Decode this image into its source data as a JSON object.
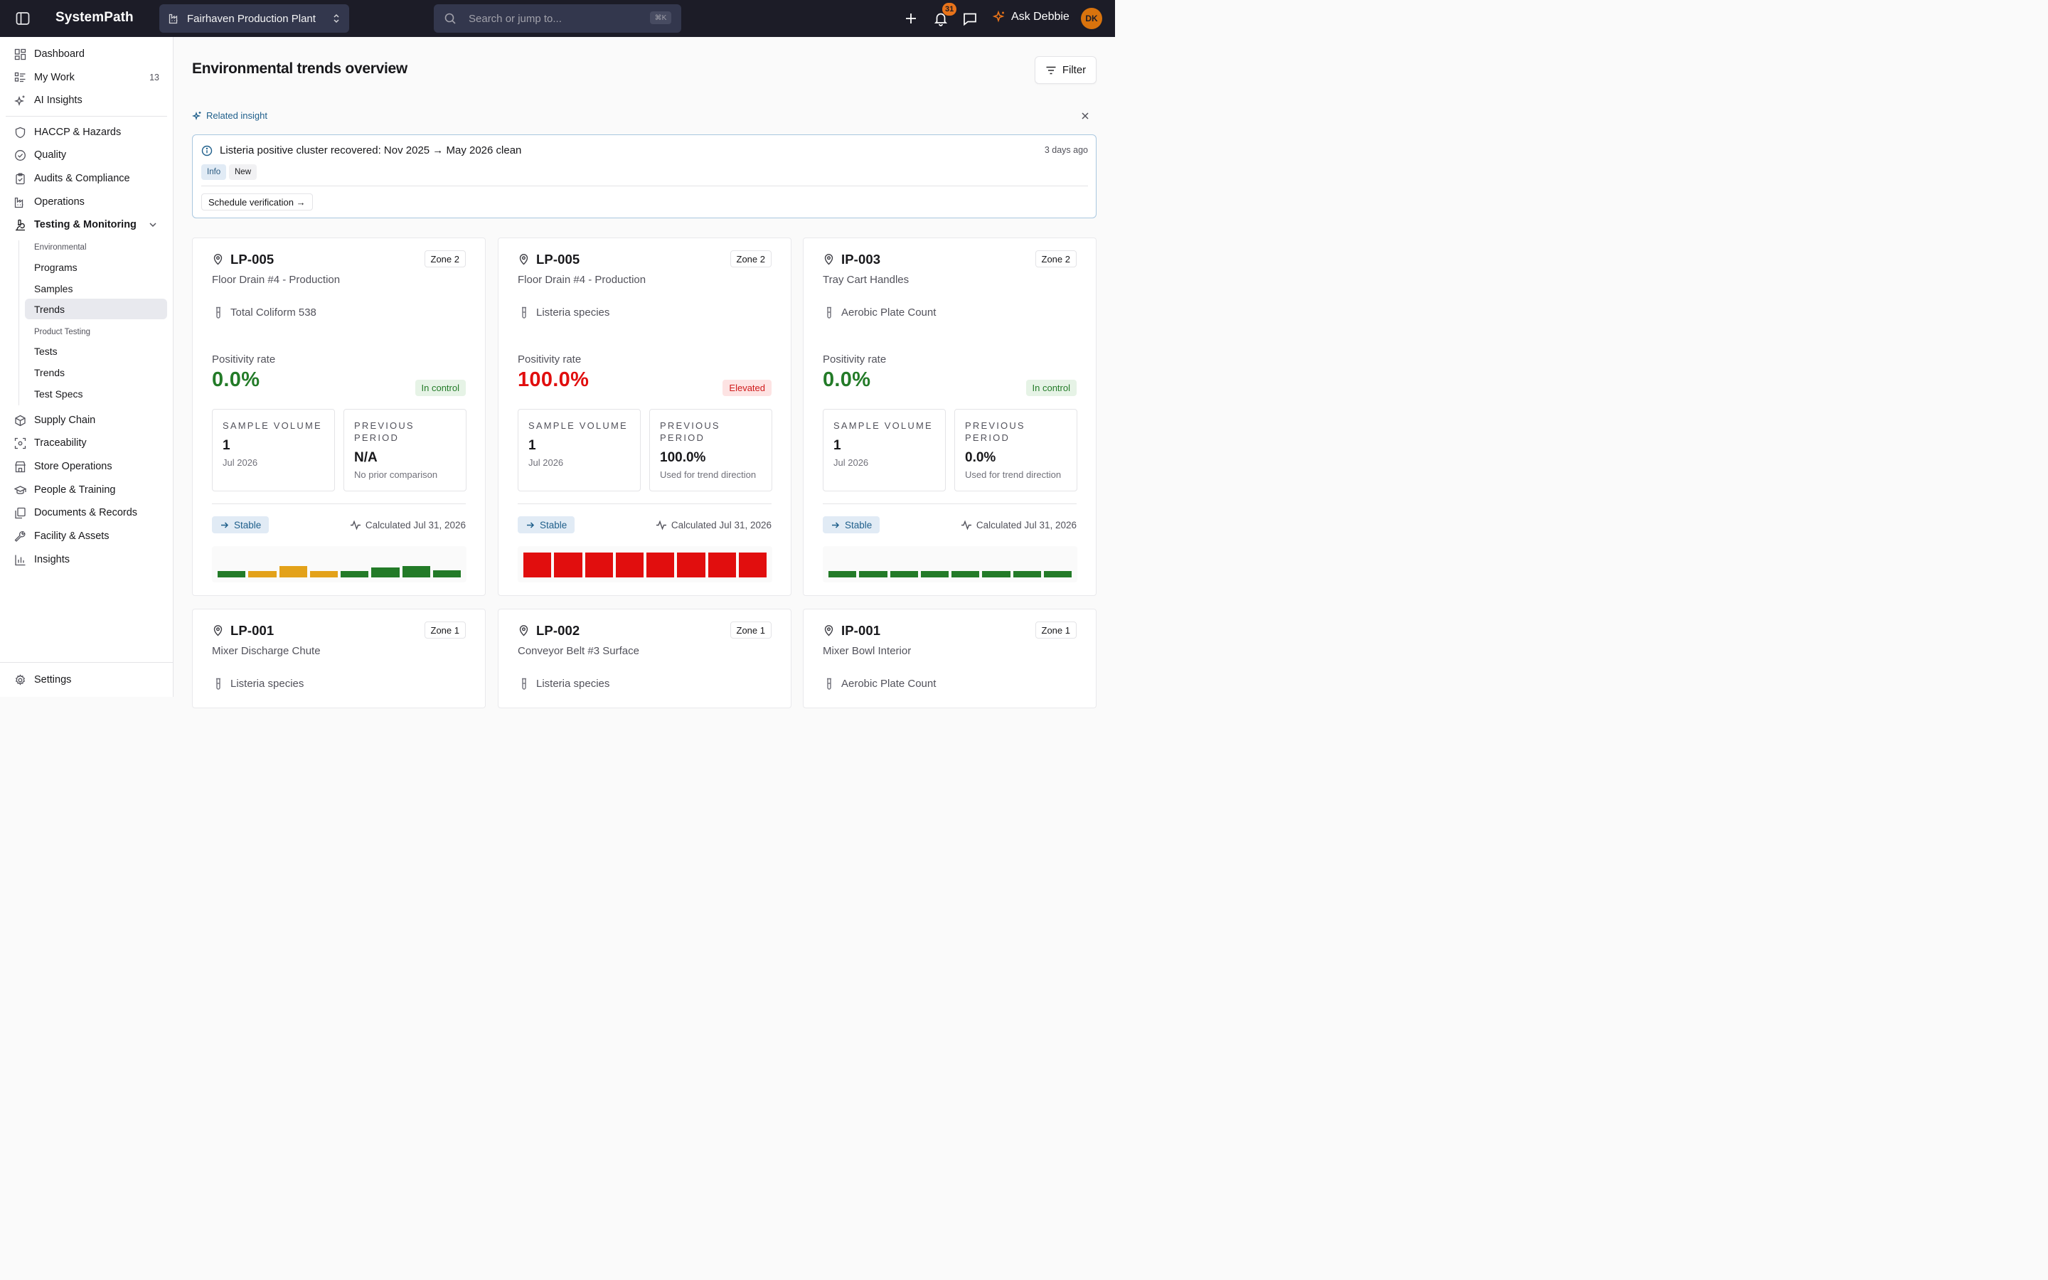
{
  "topbar": {
    "brand": "SystemPath",
    "site": "Fairhaven Production Plant",
    "search_placeholder": "Search or jump to...",
    "search_shortcut": "⌘K",
    "notification_count": "31",
    "ask_label": "Ask Debbie",
    "avatar_initials": "DK",
    "accent": "#e8731a"
  },
  "sidebar": {
    "top_items": [
      {
        "label": "Dashboard",
        "icon": "dashboard-icon"
      },
      {
        "label": "My Work",
        "icon": "list-icon",
        "count": "13"
      },
      {
        "label": "AI Insights",
        "icon": "sparkles-icon"
      }
    ],
    "items": [
      {
        "label": "HACCP & Hazards",
        "icon": "shield-icon"
      },
      {
        "label": "Quality",
        "icon": "check-circle-icon"
      },
      {
        "label": "Audits & Compliance",
        "icon": "clipboard-icon"
      },
      {
        "label": "Operations",
        "icon": "factory-icon"
      },
      {
        "label": "Testing & Monitoring",
        "icon": "microscope-icon"
      }
    ],
    "sub_groups": [
      {
        "heading": "Environmental",
        "items": [
          "Programs",
          "Samples",
          "Trends"
        ]
      },
      {
        "heading": "Product Testing",
        "items": [
          "Tests",
          "Trends",
          "Test Specs"
        ]
      }
    ],
    "active_sub_item": "Trends",
    "bottom_items": [
      {
        "label": "Supply Chain",
        "icon": "package-icon"
      },
      {
        "label": "Traceability",
        "icon": "scan-icon"
      },
      {
        "label": "Store Operations",
        "icon": "store-icon"
      },
      {
        "label": "People & Training",
        "icon": "graduation-cap-icon"
      },
      {
        "label": "Documents & Records",
        "icon": "documents-icon"
      },
      {
        "label": "Facility & Assets",
        "icon": "wrench-icon"
      },
      {
        "label": "Insights",
        "icon": "bar-chart-icon"
      }
    ],
    "settings": "Settings"
  },
  "page": {
    "title": "Environmental trends overview",
    "filter_label": "Filter"
  },
  "insight": {
    "section_label": "Related insight",
    "title": "Listeria positive cluster recovered: Nov 2025 → May 2026 clean",
    "ago": "3 days ago",
    "tags": [
      "Info",
      "New"
    ],
    "action": "Schedule verification →"
  },
  "labels": {
    "positivity": "Positivity rate",
    "sample_volume": "Sample volume",
    "previous_period": "Previous period"
  },
  "colors": {
    "good": "#237b28",
    "bad": "#e10e0e",
    "warn": "#e3a21a"
  },
  "cards": [
    {
      "code": "LP-005",
      "zone": "Zone 2",
      "location": "Floor Drain #4 - Production",
      "test": "Total Coliform 538",
      "rate": "0.0%",
      "status": "In control",
      "severity": "ok",
      "sample_volume": "1",
      "sample_period": "Jul 2026",
      "previous": "N/A",
      "previous_note": "No prior comparison",
      "trend": "Stable",
      "calculated": "Calculated Jul 31, 2026",
      "spark": [
        {
          "level": 0.25,
          "color": "good"
        },
        {
          "level": 0.25,
          "color": "warn"
        },
        {
          "level": 0.45,
          "color": "warn"
        },
        {
          "level": 0.25,
          "color": "warn"
        },
        {
          "level": 0.25,
          "color": "good"
        },
        {
          "level": 0.4,
          "color": "good"
        },
        {
          "level": 0.45,
          "color": "good"
        },
        {
          "level": 0.3,
          "color": "good"
        }
      ]
    },
    {
      "code": "LP-005",
      "zone": "Zone 2",
      "location": "Floor Drain #4 - Production",
      "test": "Listeria species",
      "rate": "100.0%",
      "status": "Elevated",
      "severity": "bad",
      "sample_volume": "1",
      "sample_period": "Jul 2026",
      "previous": "100.0%",
      "previous_note": "Used for trend direction",
      "trend": "Stable",
      "calculated": "Calculated Jul 31, 2026",
      "spark": [
        {
          "level": 1,
          "color": "bad"
        },
        {
          "level": 1,
          "color": "bad"
        },
        {
          "level": 1,
          "color": "bad"
        },
        {
          "level": 1,
          "color": "bad"
        },
        {
          "level": 1,
          "color": "bad"
        },
        {
          "level": 1,
          "color": "bad"
        },
        {
          "level": 1,
          "color": "bad"
        },
        {
          "level": 1,
          "color": "bad"
        }
      ]
    },
    {
      "code": "IP-003",
      "zone": "Zone 2",
      "location": "Tray Cart Handles",
      "test": "Aerobic Plate Count",
      "rate": "0.0%",
      "status": "In control",
      "severity": "ok",
      "sample_volume": "1",
      "sample_period": "Jul 2026",
      "previous": "0.0%",
      "previous_note": "Used for trend direction",
      "trend": "Stable",
      "calculated": "Calculated Jul 31, 2026",
      "spark": [
        {
          "level": 0.25,
          "color": "good"
        },
        {
          "level": 0.25,
          "color": "good"
        },
        {
          "level": 0.25,
          "color": "good"
        },
        {
          "level": 0.25,
          "color": "good"
        },
        {
          "level": 0.25,
          "color": "good"
        },
        {
          "level": 0.25,
          "color": "good"
        },
        {
          "level": 0.25,
          "color": "good"
        },
        {
          "level": 0.25,
          "color": "good"
        }
      ]
    },
    {
      "code": "LP-001",
      "zone": "Zone 1",
      "location": "Mixer Discharge Chute",
      "test": "Listeria species"
    },
    {
      "code": "LP-002",
      "zone": "Zone 1",
      "location": "Conveyor Belt #3 Surface",
      "test": "Listeria species"
    },
    {
      "code": "IP-001",
      "zone": "Zone 1",
      "location": "Mixer Bowl Interior",
      "test": "Aerobic Plate Count"
    }
  ]
}
